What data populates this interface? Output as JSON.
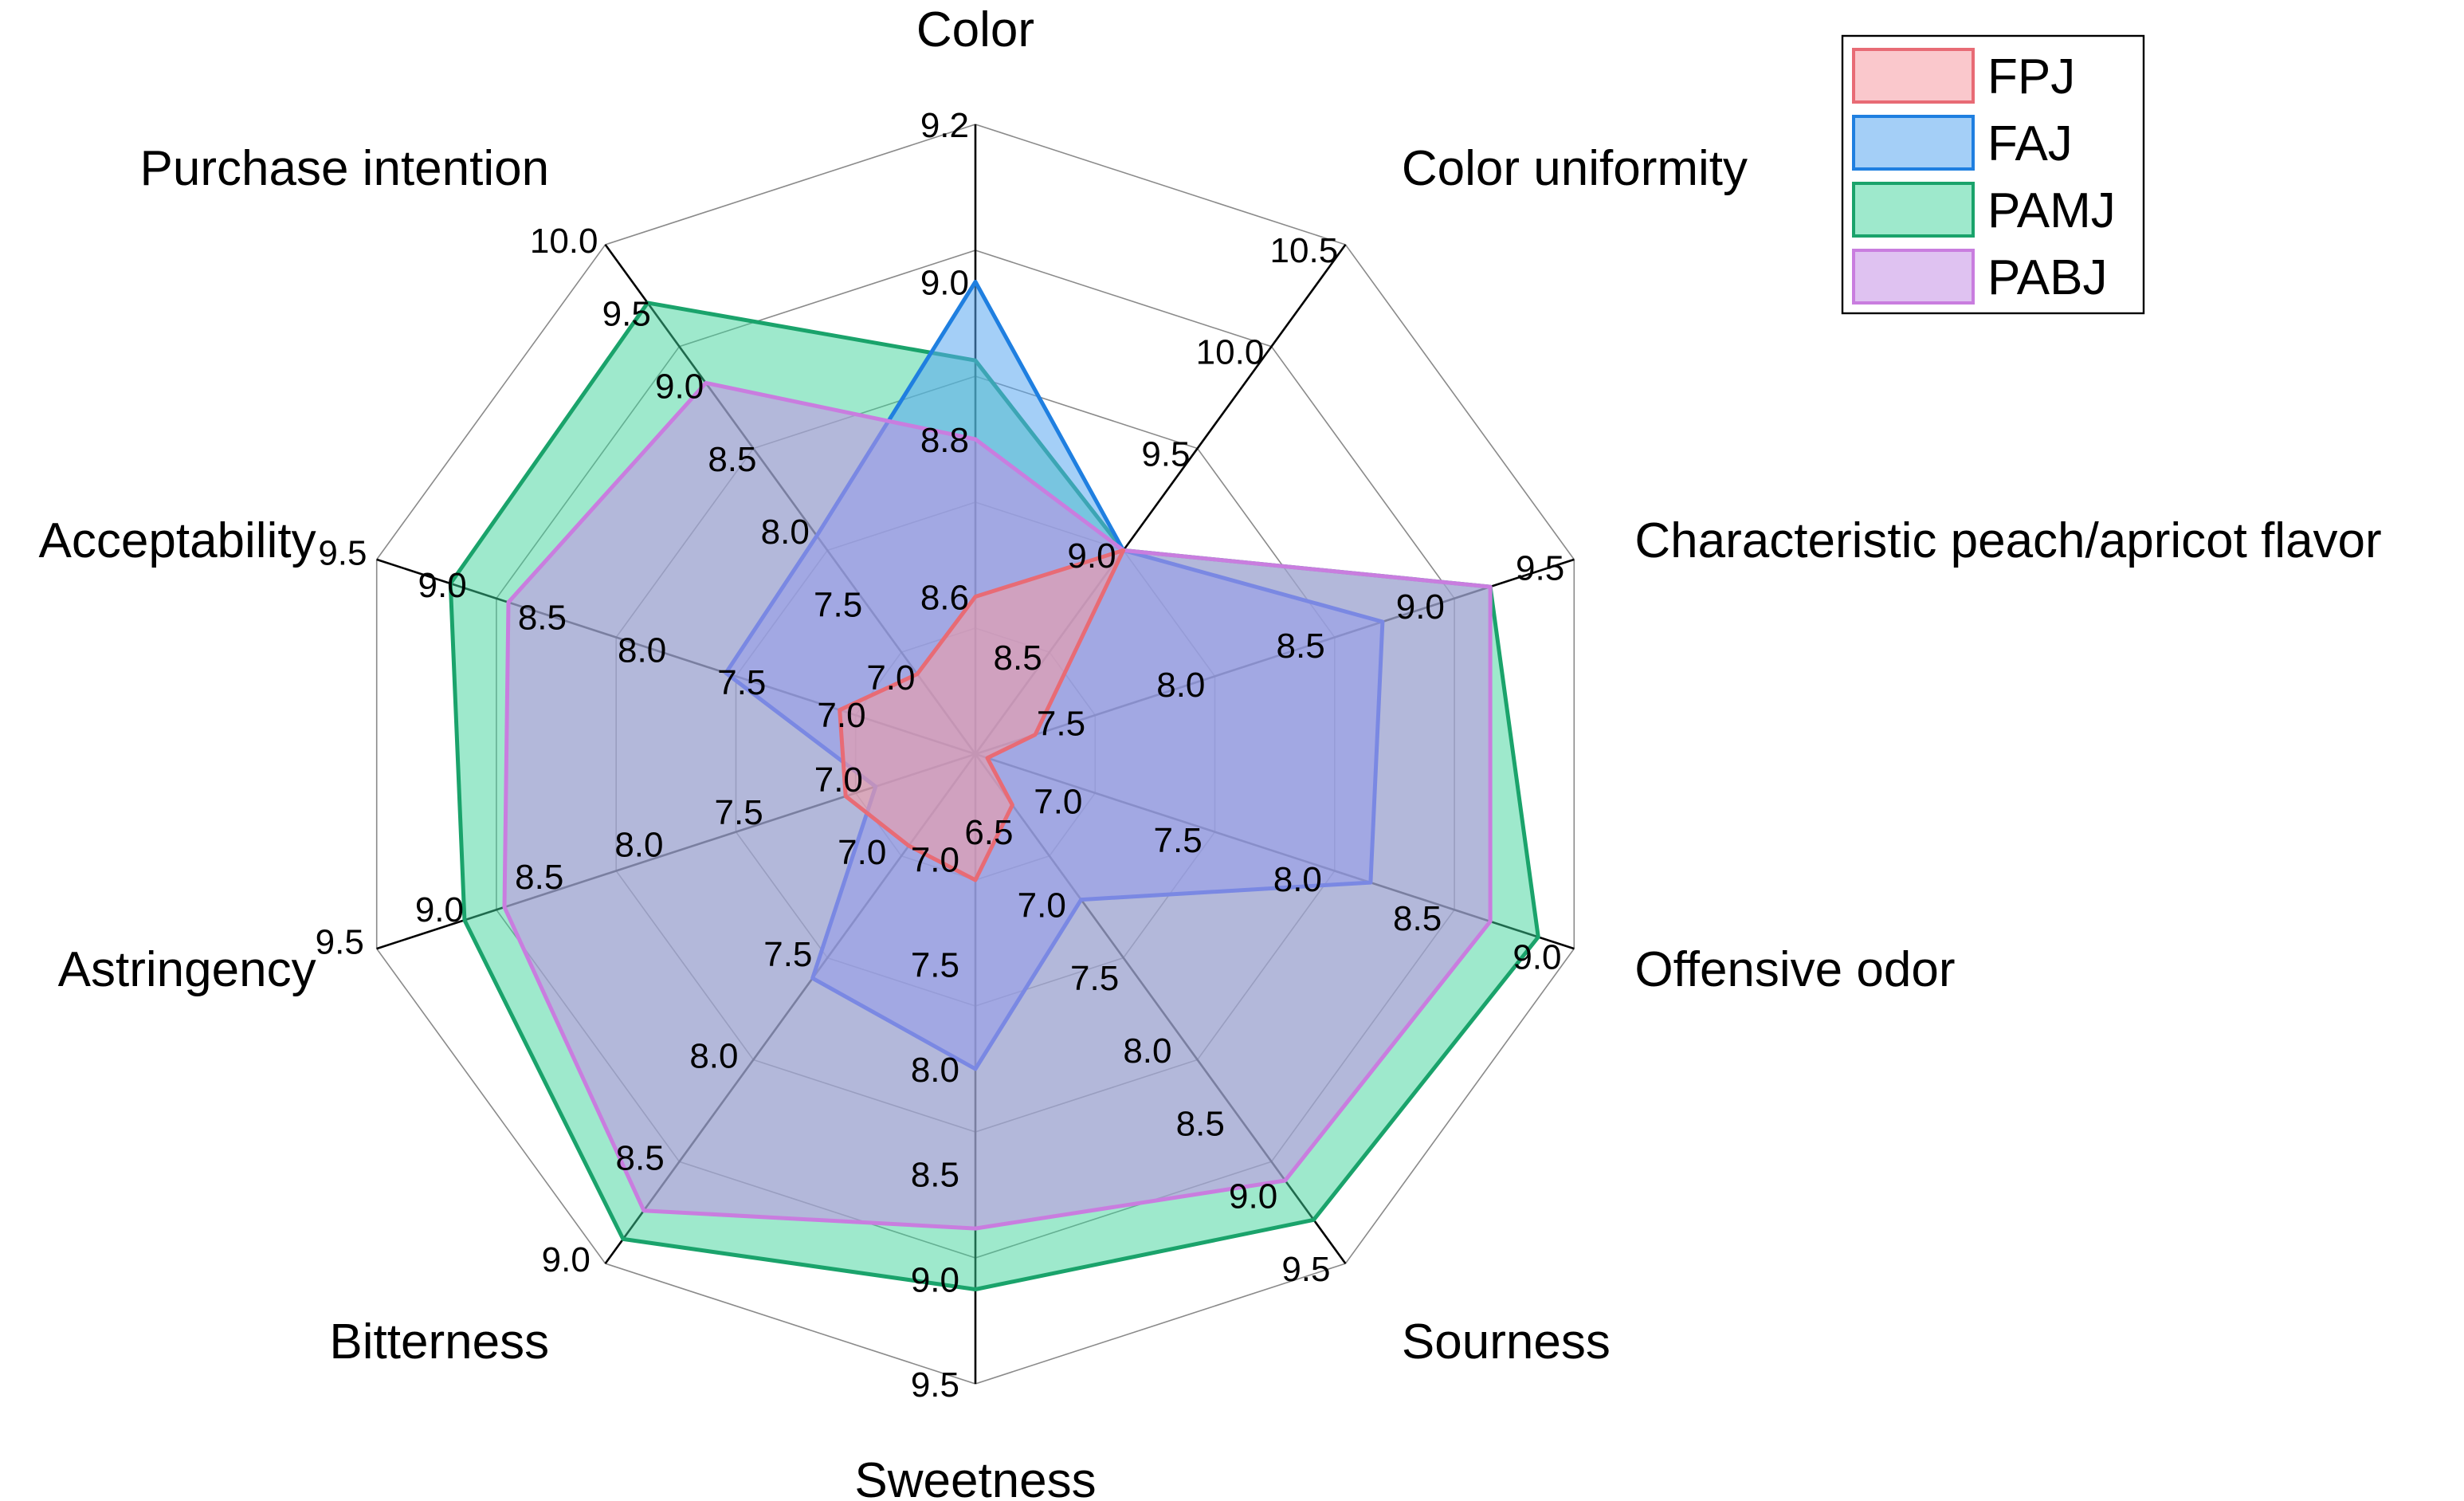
{
  "chart_data": {
    "type": "radar",
    "title": "",
    "legend_position": "top-right",
    "axes": [
      {
        "label": "Color",
        "ticks": [
          "8.6",
          "8.8",
          "9.0",
          "9.2"
        ],
        "range": [
          8.4,
          9.2
        ]
      },
      {
        "label": "Color uniformity",
        "ticks": [
          "8.5",
          "9.0",
          "9.5",
          "10.0",
          "10.5"
        ],
        "range": [
          8.0,
          10.5
        ]
      },
      {
        "label": "Characteristic peach/apricot flavor",
        "ticks": [
          "7.5",
          "8.0",
          "8.5",
          "9.0",
          "9.5"
        ],
        "range": [
          7.0,
          9.5
        ]
      },
      {
        "label": "Offensive odor",
        "ticks": [
          "7.0",
          "7.5",
          "8.0",
          "8.5",
          "9.0"
        ],
        "range": [
          6.5,
          9.0
        ]
      },
      {
        "label": "Sourness",
        "ticks": [
          "6.5",
          "7.0",
          "7.5",
          "8.0",
          "8.5",
          "9.0",
          "9.5"
        ],
        "range": [
          6.0,
          9.5
        ]
      },
      {
        "label": "Sweetness",
        "ticks": [
          "7.0",
          "7.5",
          "8.0",
          "8.5",
          "9.0",
          "9.5"
        ],
        "range": [
          6.5,
          9.5
        ]
      },
      {
        "label": "Bitterness",
        "ticks": [
          "7.0",
          "7.5",
          "8.0",
          "8.5",
          "9.0"
        ],
        "range": [
          6.5,
          9.0
        ]
      },
      {
        "label": "Astringency",
        "ticks": [
          "7.0",
          "7.5",
          "8.0",
          "8.5",
          "9.0",
          "9.5"
        ],
        "range": [
          6.5,
          9.5
        ]
      },
      {
        "label": "Acceptability",
        "ticks": [
          "7.0",
          "7.5",
          "8.0",
          "8.5",
          "9.0",
          "9.5"
        ],
        "range": [
          6.5,
          9.5
        ]
      },
      {
        "label": "Purchase intention",
        "ticks": [
          "7.0",
          "7.5",
          "8.0",
          "8.5",
          "9.0",
          "9.5",
          "10.0"
        ],
        "range": [
          6.5,
          10.0
        ]
      }
    ],
    "series": [
      {
        "name": "PAMJ",
        "color": "#1aa36b",
        "fill": "#3dd39a",
        "fill_opacity": 0.5,
        "values": [
          8.9,
          9.0,
          9.15,
          8.85,
          9.2,
          9.05,
          8.88,
          9.06,
          9.13,
          9.6
        ]
      },
      {
        "name": "FAJ",
        "color": "#1f7fe0",
        "fill": "#5aa7f0",
        "fill_opacity": 0.55,
        "values": [
          9.0,
          9.0,
          8.7,
          8.15,
          7.0,
          8.0,
          7.6,
          7.0,
          7.75,
          8.0
        ]
      },
      {
        "name": "PABJ",
        "color": "#c97ddf",
        "fill": "#c58fe6",
        "fill_opacity": 0.55,
        "values": [
          8.8,
          9.0,
          9.15,
          8.65,
          8.93,
          8.76,
          8.74,
          8.86,
          8.84,
          9.05
        ]
      },
      {
        "name": "FPJ",
        "color": "#e86b75",
        "fill": "#f59aa3",
        "fill_opacity": 0.55,
        "values": [
          8.6,
          9.0,
          7.25,
          6.55,
          6.35,
          7.1,
          6.95,
          7.15,
          7.18,
          7.05
        ]
      }
    ],
    "legend_order": [
      "FPJ",
      "FAJ",
      "PAMJ",
      "PABJ"
    ]
  }
}
